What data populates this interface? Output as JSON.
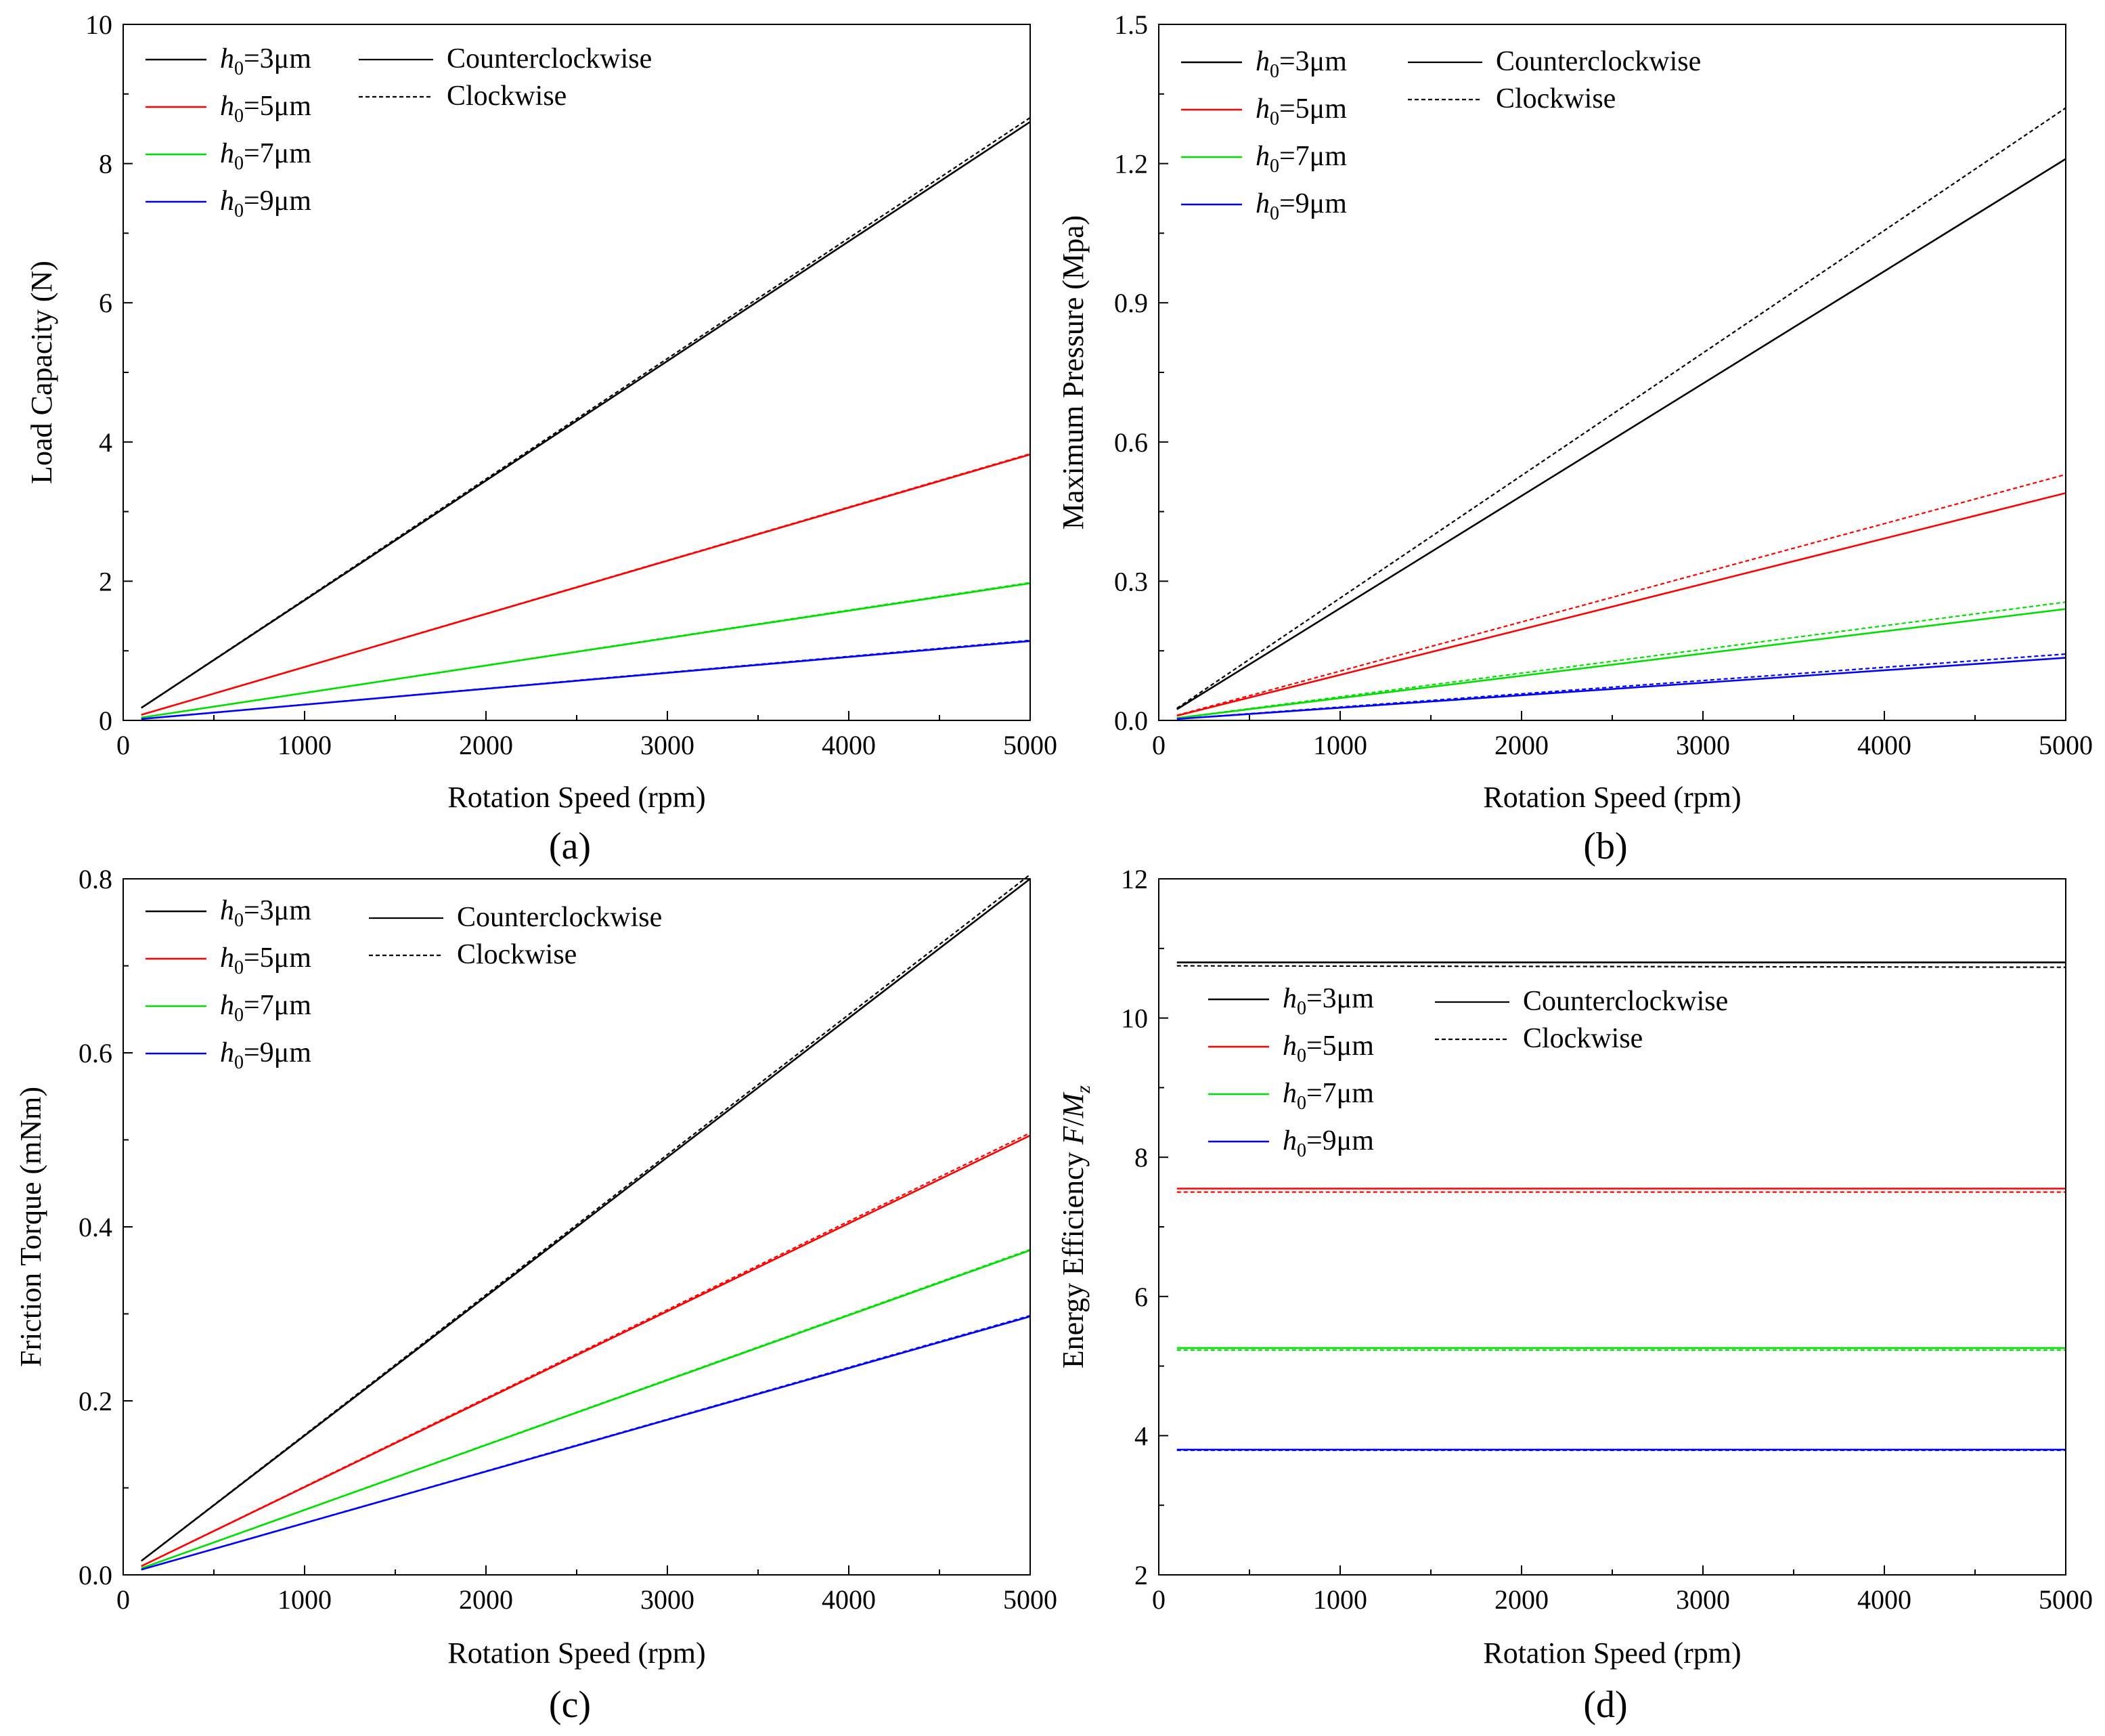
{
  "figure": {
    "series_styles": [
      {
        "label_prefix": "h",
        "label_sub": "0",
        "label_suffix": "=3μm",
        "color": "#000000"
      },
      {
        "label_prefix": "h",
        "label_sub": "0",
        "label_suffix": "=5μm",
        "color": "#ff0000"
      },
      {
        "label_prefix": "h",
        "label_sub": "0",
        "label_suffix": "=7μm",
        "color": "#00dd00"
      },
      {
        "label_prefix": "h",
        "label_sub": "0",
        "label_suffix": "=9μm",
        "color": "#0000ff"
      }
    ],
    "direction_legend": [
      {
        "label": "Counterclockwise",
        "dash": "solid"
      },
      {
        "label": "Clockwise",
        "dash": "dashed"
      }
    ]
  },
  "chart_data": [
    {
      "id": "a",
      "type": "line",
      "caption": "(a)",
      "xlabel": "Rotation Speed (rpm)",
      "ylabel": "Load Capacity (N)",
      "xlim": [
        0,
        5000
      ],
      "ylim": [
        0,
        10
      ],
      "xticks": [
        0,
        1000,
        2000,
        3000,
        4000,
        5000
      ],
      "yticks": [
        0,
        2,
        4,
        6,
        8,
        10
      ],
      "ytick_labels": [
        "0",
        "2",
        "4",
        "6",
        "8",
        "10"
      ],
      "legend_position": "top-left",
      "x": [
        100,
        5000
      ],
      "series": [
        {
          "name": "h0=3μm Counterclockwise",
          "color": "#000000",
          "dash": "solid",
          "values": [
            0.18,
            8.6
          ]
        },
        {
          "name": "h0=3μm Clockwise",
          "color": "#000000",
          "dash": "dashed",
          "values": [
            0.18,
            8.66
          ]
        },
        {
          "name": "h0=5μm Counterclockwise",
          "color": "#ff0000",
          "dash": "solid",
          "values": [
            0.08,
            3.82
          ]
        },
        {
          "name": "h0=5μm Clockwise",
          "color": "#ff0000",
          "dash": "dashed",
          "values": [
            0.08,
            3.83
          ]
        },
        {
          "name": "h0=7μm Counterclockwise",
          "color": "#00dd00",
          "dash": "solid",
          "values": [
            0.04,
            1.97
          ]
        },
        {
          "name": "h0=7μm Clockwise",
          "color": "#00dd00",
          "dash": "dashed",
          "values": [
            0.04,
            1.98
          ]
        },
        {
          "name": "h0=9μm Counterclockwise",
          "color": "#0000ff",
          "dash": "solid",
          "values": [
            0.02,
            1.14
          ]
        },
        {
          "name": "h0=9μm Clockwise",
          "color": "#0000ff",
          "dash": "dashed",
          "values": [
            0.02,
            1.15
          ]
        }
      ]
    },
    {
      "id": "b",
      "type": "line",
      "caption": "(b)",
      "xlabel": "Rotation Speed (rpm)",
      "ylabel": "Maximum Pressure (Mpa)",
      "xlim": [
        0,
        5000
      ],
      "ylim": [
        0,
        1.5
      ],
      "xticks": [
        0,
        1000,
        2000,
        3000,
        4000,
        5000
      ],
      "yticks": [
        0,
        0.3,
        0.6,
        0.9,
        1.2,
        1.5
      ],
      "ytick_labels": [
        "0.0",
        "0.3",
        "0.6",
        "0.9",
        "1.2",
        "1.5"
      ],
      "legend_position": "top-left",
      "x": [
        100,
        5000
      ],
      "series": [
        {
          "name": "h0=3μm Counterclockwise",
          "color": "#000000",
          "dash": "solid",
          "values": [
            0.024,
            1.21
          ]
        },
        {
          "name": "h0=3μm Clockwise",
          "color": "#000000",
          "dash": "dashed",
          "values": [
            0.026,
            1.32
          ]
        },
        {
          "name": "h0=5μm Counterclockwise",
          "color": "#ff0000",
          "dash": "solid",
          "values": [
            0.01,
            0.49
          ]
        },
        {
          "name": "h0=5μm Clockwise",
          "color": "#ff0000",
          "dash": "dashed",
          "values": [
            0.011,
            0.53
          ]
        },
        {
          "name": "h0=7μm Counterclockwise",
          "color": "#00dd00",
          "dash": "solid",
          "values": [
            0.005,
            0.24
          ]
        },
        {
          "name": "h0=7μm Clockwise",
          "color": "#00dd00",
          "dash": "dashed",
          "values": [
            0.005,
            0.255
          ]
        },
        {
          "name": "h0=9μm Counterclockwise",
          "color": "#0000ff",
          "dash": "solid",
          "values": [
            0.003,
            0.135
          ]
        },
        {
          "name": "h0=9μm Clockwise",
          "color": "#0000ff",
          "dash": "dashed",
          "values": [
            0.003,
            0.143
          ]
        }
      ]
    },
    {
      "id": "c",
      "type": "line",
      "caption": "(c)",
      "xlabel": "Rotation Speed (rpm)",
      "ylabel": "Friction Torque (mNm)",
      "xlim": [
        0,
        5000
      ],
      "ylim": [
        0,
        0.8
      ],
      "xticks": [
        0,
        1000,
        2000,
        3000,
        4000,
        5000
      ],
      "yticks": [
        0,
        0.2,
        0.4,
        0.6,
        0.8
      ],
      "ytick_labels": [
        "0.0",
        "0.2",
        "0.4",
        "0.6",
        "0.8"
      ],
      "legend_position": "top-left",
      "x": [
        100,
        5000
      ],
      "series": [
        {
          "name": "h0=3μm Counterclockwise",
          "color": "#000000",
          "dash": "solid",
          "values": [
            0.016,
            0.8
          ]
        },
        {
          "name": "h0=3μm Clockwise",
          "color": "#000000",
          "dash": "dashed",
          "values": [
            0.016,
            0.805
          ]
        },
        {
          "name": "h0=5μm Counterclockwise",
          "color": "#ff0000",
          "dash": "solid",
          "values": [
            0.01,
            0.505
          ]
        },
        {
          "name": "h0=5μm Clockwise",
          "color": "#ff0000",
          "dash": "dashed",
          "values": [
            0.01,
            0.508
          ]
        },
        {
          "name": "h0=7μm Counterclockwise",
          "color": "#00dd00",
          "dash": "solid",
          "values": [
            0.0075,
            0.373
          ]
        },
        {
          "name": "h0=7μm Clockwise",
          "color": "#00dd00",
          "dash": "dashed",
          "values": [
            0.0075,
            0.374
          ]
        },
        {
          "name": "h0=9μm Counterclockwise",
          "color": "#0000ff",
          "dash": "solid",
          "values": [
            0.006,
            0.297
          ]
        },
        {
          "name": "h0=9μm Clockwise",
          "color": "#0000ff",
          "dash": "dashed",
          "values": [
            0.006,
            0.298
          ]
        }
      ]
    },
    {
      "id": "d",
      "type": "line",
      "caption": "(d)",
      "xlabel": "Rotation Speed (rpm)",
      "ylabel_prefix": "Energy Efficiency ",
      "ylabel_F": "F",
      "ylabel_slash": "/",
      "ylabel_M": "M",
      "ylabel_sub": "z",
      "xlim": [
        0,
        5000
      ],
      "ylim": [
        2,
        12
      ],
      "xticks": [
        0,
        1000,
        2000,
        3000,
        4000,
        5000
      ],
      "yticks": [
        2,
        4,
        6,
        8,
        10,
        12
      ],
      "ytick_labels": [
        "2",
        "4",
        "6",
        "8",
        "10",
        "12"
      ],
      "legend_position": "upper-left",
      "x": [
        100,
        5000
      ],
      "series": [
        {
          "name": "h0=3μm Counterclockwise",
          "color": "#000000",
          "dash": "solid",
          "values": [
            10.8,
            10.8
          ]
        },
        {
          "name": "h0=3μm Clockwise",
          "color": "#000000",
          "dash": "dashed",
          "values": [
            10.75,
            10.73
          ]
        },
        {
          "name": "h0=5μm Counterclockwise",
          "color": "#ff0000",
          "dash": "solid",
          "values": [
            7.55,
            7.55
          ]
        },
        {
          "name": "h0=5μm Clockwise",
          "color": "#ff0000",
          "dash": "dashed",
          "values": [
            7.5,
            7.5
          ]
        },
        {
          "name": "h0=7μm Counterclockwise",
          "color": "#00dd00",
          "dash": "solid",
          "values": [
            5.26,
            5.26
          ]
        },
        {
          "name": "h0=7μm Clockwise",
          "color": "#00dd00",
          "dash": "dashed",
          "values": [
            5.23,
            5.23
          ]
        },
        {
          "name": "h0=9μm Counterclockwise",
          "color": "#0000ff",
          "dash": "solid",
          "values": [
            3.8,
            3.8
          ]
        },
        {
          "name": "h0=9μm Clockwise",
          "color": "#0000ff",
          "dash": "dashed",
          "values": [
            3.79,
            3.79
          ]
        }
      ]
    }
  ]
}
